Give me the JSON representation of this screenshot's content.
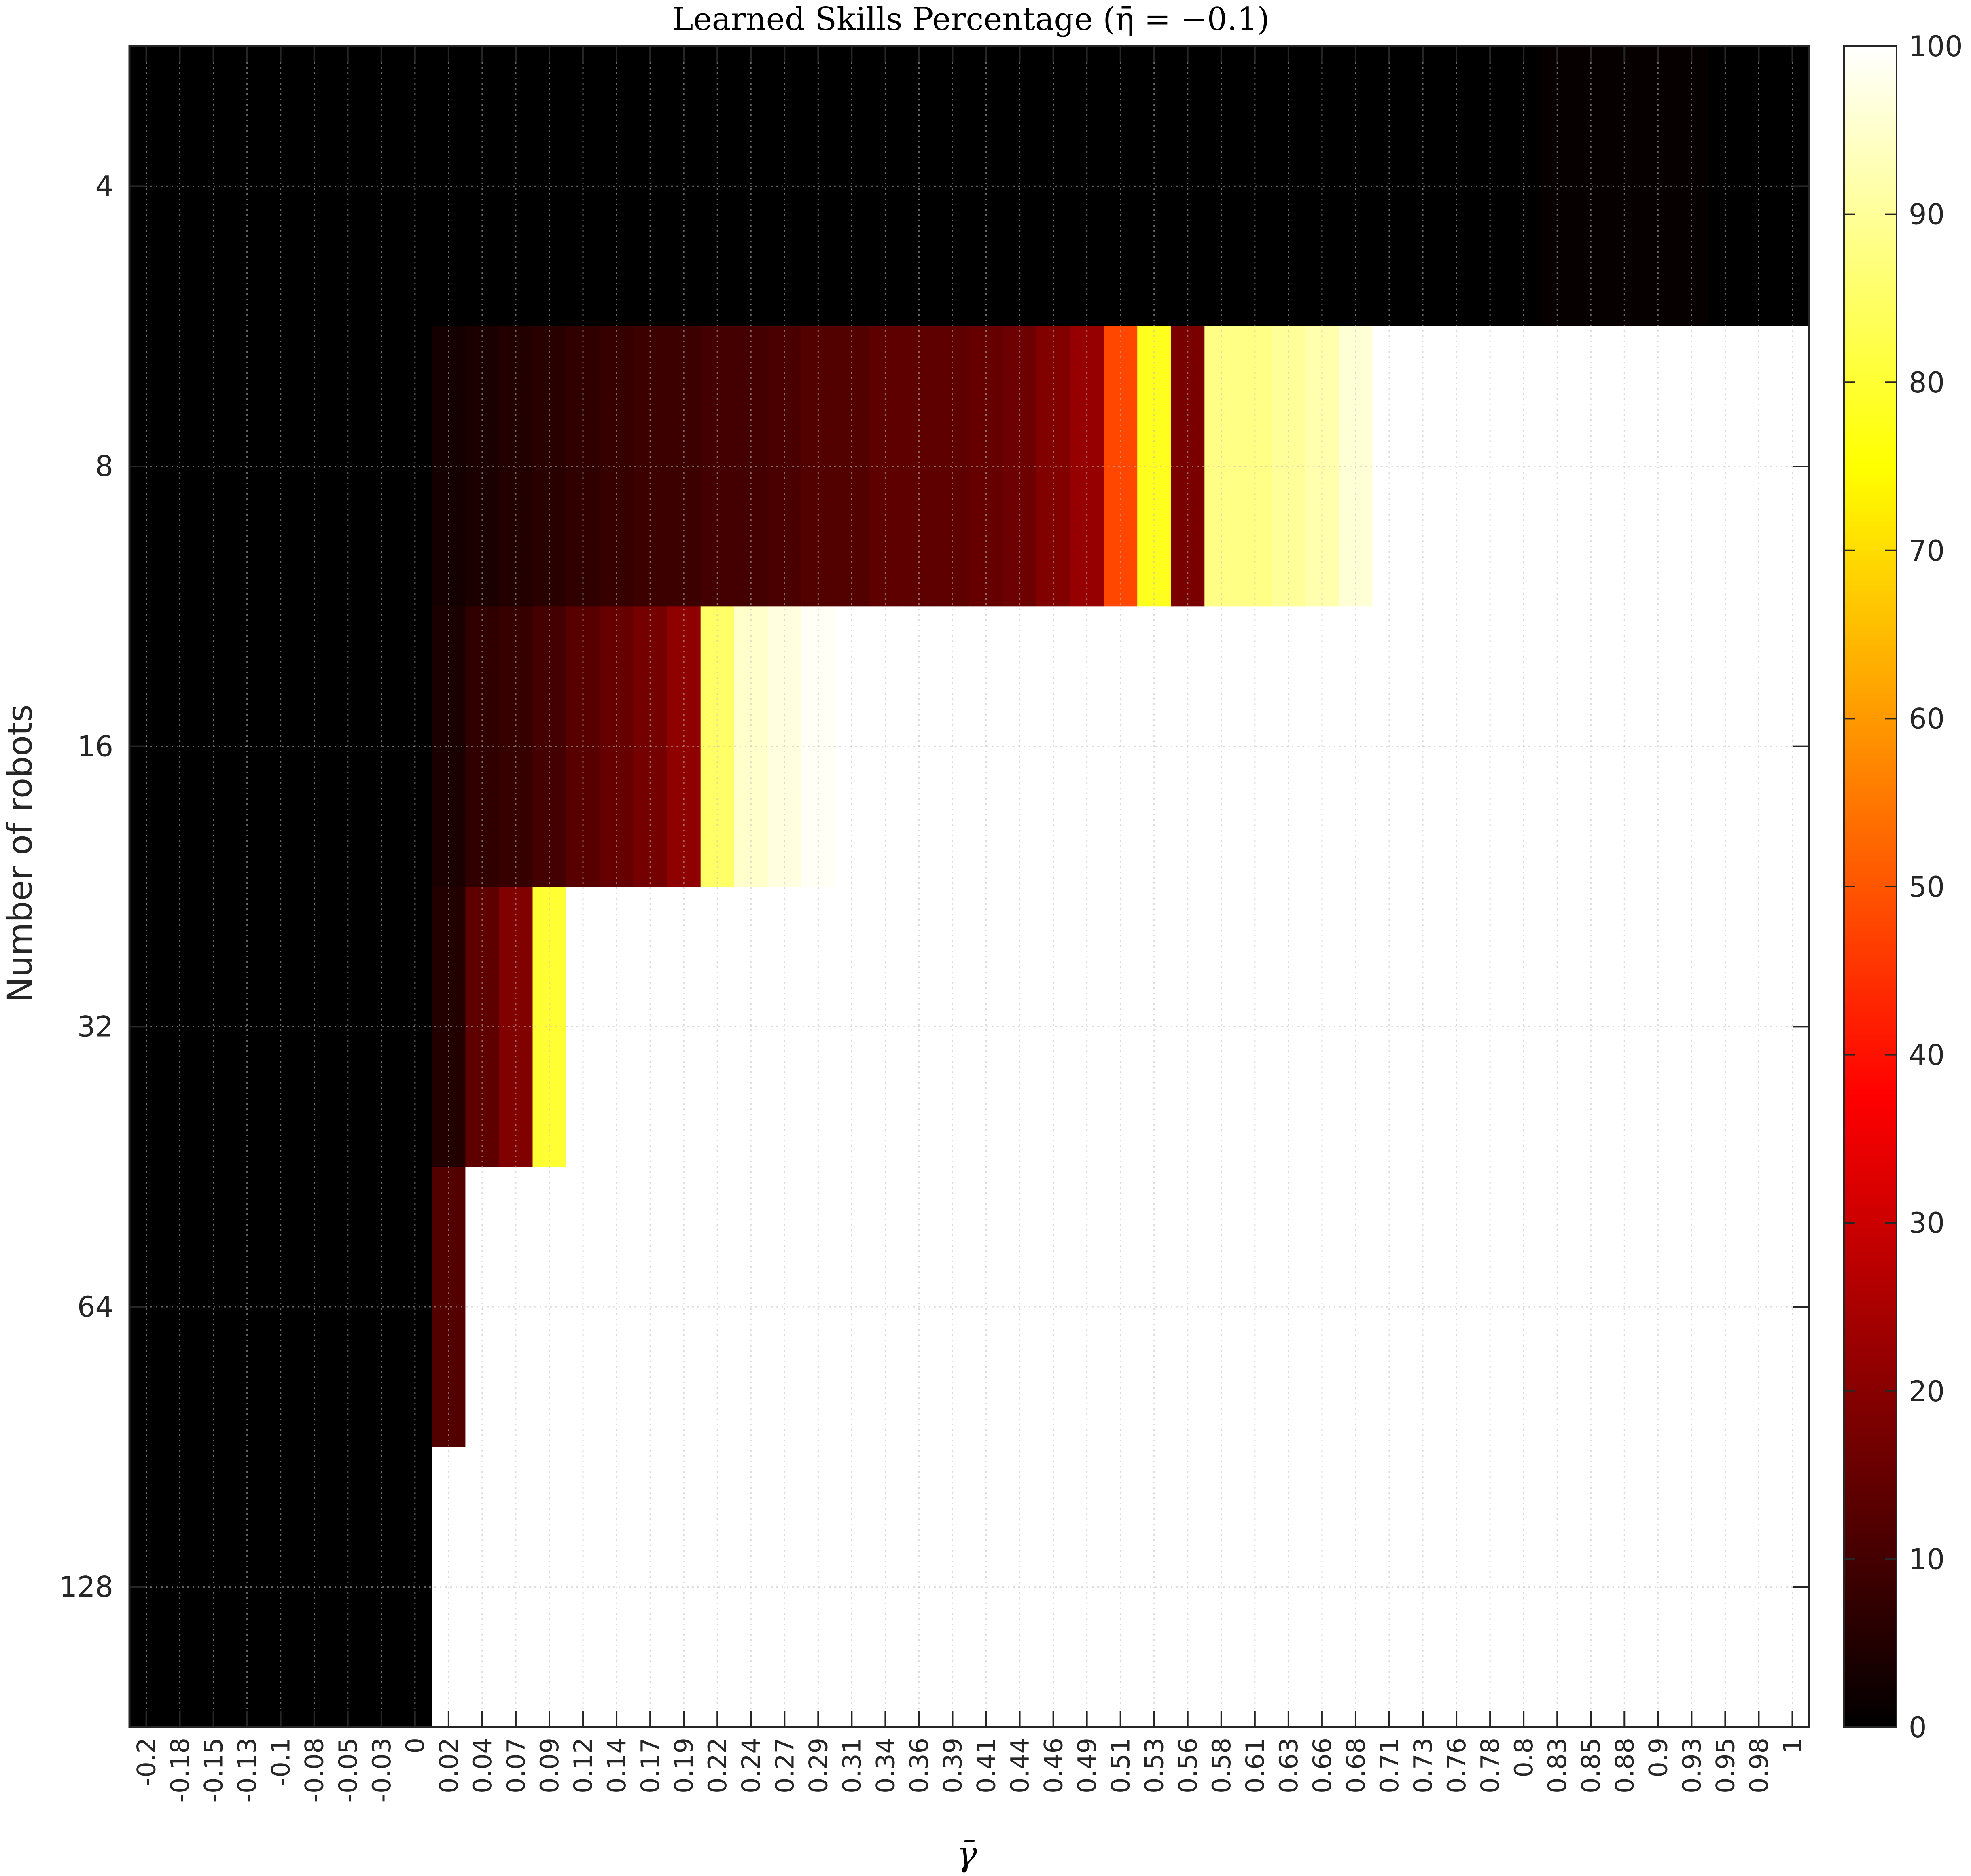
{
  "chart_data": {
    "type": "heatmap",
    "title": "Learned Skills Percentage (η̄ = −0.1)",
    "xlabel": "γ̄",
    "ylabel": "Number of robots",
    "colormap": "hot",
    "clim": [
      0,
      100
    ],
    "colorbar_ticks": [
      "0",
      "10",
      "20",
      "30",
      "40",
      "50",
      "60",
      "70",
      "80",
      "90",
      "100"
    ],
    "y_categories": [
      "4",
      "8",
      "16",
      "32",
      "64",
      "128"
    ],
    "x_tick_labels": [
      "-0.2",
      "-0.18",
      "-0.15",
      "-0.13",
      "-0.1",
      "-0.08",
      "-0.05",
      "-0.03",
      "0",
      "0.02",
      "0.04",
      "0.07",
      "0.09",
      "0.12",
      "0.14",
      "0.17",
      "0.19",
      "0.22",
      "0.24",
      "0.27",
      "0.29",
      "0.31",
      "0.34",
      "0.36",
      "0.39",
      "0.41",
      "0.44",
      "0.46",
      "0.49",
      "0.51",
      "0.53",
      "0.56",
      "0.58",
      "0.61",
      "0.63",
      "0.66",
      "0.68",
      "0.71",
      "0.73",
      "0.76",
      "0.78",
      "0.8",
      "0.83",
      "0.85",
      "0.88",
      "0.9",
      "0.93",
      "0.95",
      "0.98",
      "1"
    ],
    "grid": true,
    "z": [
      [
        0,
        0,
        0,
        0,
        0,
        0,
        0,
        0,
        0,
        0,
        0,
        0,
        0,
        0,
        0,
        0,
        0,
        0,
        0,
        0,
        0,
        0,
        0,
        0,
        0,
        0,
        0,
        0,
        0,
        0,
        0,
        0,
        0,
        0,
        0,
        0,
        0,
        0,
        0,
        0,
        0,
        0,
        1,
        1,
        1,
        1,
        1,
        0,
        0,
        0
      ],
      [
        0,
        0,
        0,
        0,
        0,
        0,
        0,
        0,
        0,
        3,
        4,
        5,
        6,
        7,
        8,
        9,
        9,
        10,
        10,
        11,
        12,
        12,
        14,
        14,
        14,
        15,
        16,
        19,
        22,
        48,
        78,
        18,
        88,
        88,
        90,
        92,
        96,
        100,
        100,
        100,
        100,
        100,
        100,
        100,
        100,
        100,
        100,
        100,
        100,
        100
      ],
      [
        0,
        0,
        0,
        0,
        0,
        0,
        0,
        0,
        0,
        4,
        7,
        8,
        10,
        13,
        15,
        17,
        21,
        85,
        95,
        97,
        99,
        100,
        100,
        100,
        100,
        100,
        100,
        100,
        100,
        100,
        100,
        100,
        100,
        100,
        100,
        100,
        100,
        100,
        100,
        100,
        100,
        100,
        100,
        100,
        100,
        100,
        100,
        100,
        100,
        100
      ],
      [
        0,
        0,
        0,
        0,
        0,
        0,
        0,
        0,
        0,
        5,
        14,
        19,
        80,
        100,
        100,
        100,
        100,
        100,
        100,
        100,
        100,
        100,
        100,
        100,
        100,
        100,
        100,
        100,
        100,
        100,
        100,
        100,
        100,
        100,
        100,
        100,
        100,
        100,
        100,
        100,
        100,
        100,
        100,
        100,
        100,
        100,
        100,
        100,
        100,
        100
      ],
      [
        0,
        0,
        0,
        0,
        0,
        0,
        0,
        0,
        0,
        12,
        100,
        100,
        100,
        100,
        100,
        100,
        100,
        100,
        100,
        100,
        100,
        100,
        100,
        100,
        100,
        100,
        100,
        100,
        100,
        100,
        100,
        100,
        100,
        100,
        100,
        100,
        100,
        100,
        100,
        100,
        100,
        100,
        100,
        100,
        100,
        100,
        100,
        100,
        100,
        100
      ],
      [
        0,
        0,
        0,
        0,
        0,
        0,
        0,
        0,
        0,
        100,
        100,
        100,
        100,
        100,
        100,
        100,
        100,
        100,
        100,
        100,
        100,
        100,
        100,
        100,
        100,
        100,
        100,
        100,
        100,
        100,
        100,
        100,
        100,
        100,
        100,
        100,
        100,
        100,
        100,
        100,
        100,
        100,
        100,
        100,
        100,
        100,
        100,
        100,
        100,
        100
      ]
    ]
  }
}
